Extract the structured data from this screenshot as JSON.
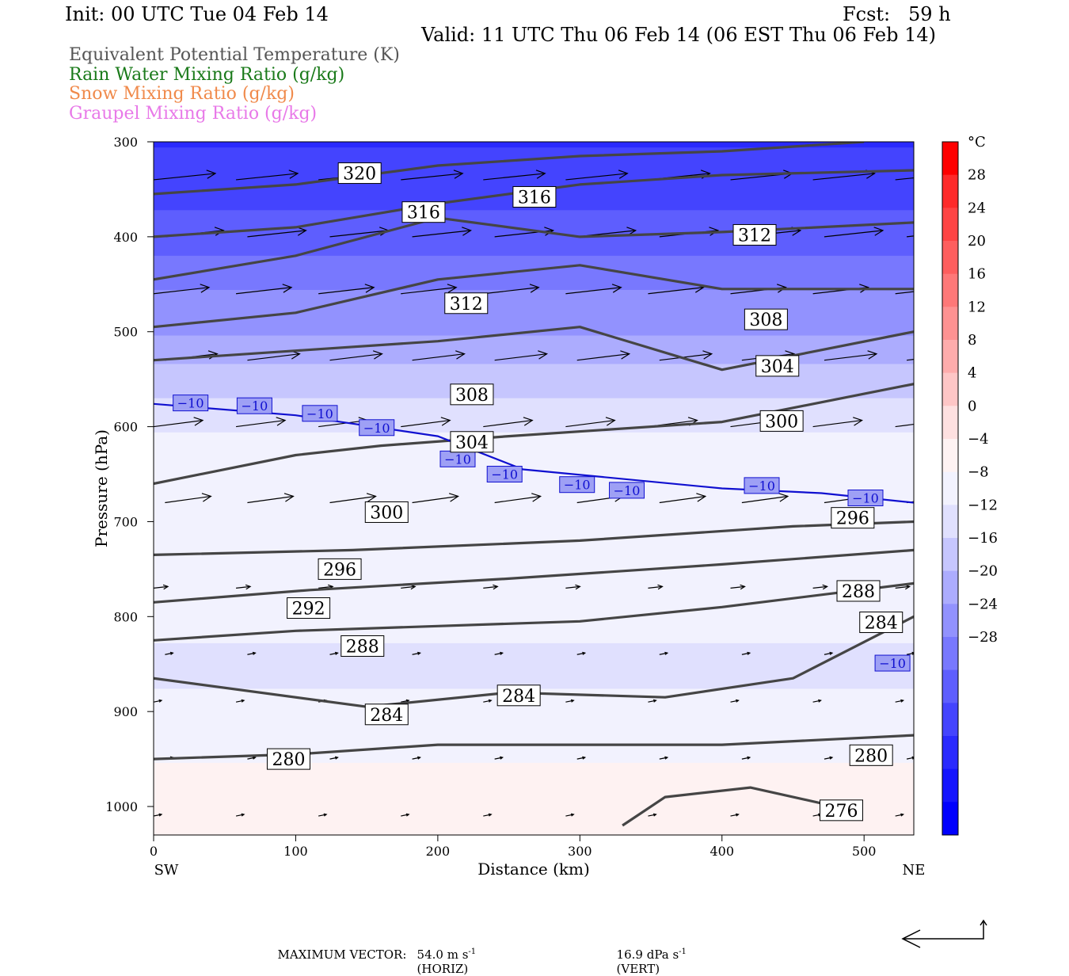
{
  "header": {
    "init": "Init: 00 UTC Tue 04 Feb 14",
    "fcst": "Fcst:   59 h",
    "valid": "Valid: 11 UTC Thu 06 Feb 14 (06 EST Thu 06 Feb 14)"
  },
  "titles": [
    {
      "text": "Equivalent Potential Temperature (K)",
      "color": "#555555"
    },
    {
      "text": "Rain Water Mixing Ratio (g/kg)",
      "color": "#1a7a1a"
    },
    {
      "text": "Snow Mixing Ratio (g/kg)",
      "color": "#f08a4b"
    },
    {
      "text": "Graupel Mixing Ratio (g/kg)",
      "color": "#e879e8"
    }
  ],
  "footer": {
    "label": "MAXIMUM VECTOR:",
    "horiz_value": "54.0 m s",
    "horiz_unit": "-1",
    "horiz_tag": "(HORIZ)",
    "vert_value": "16.9 dPa s",
    "vert_unit": "-1",
    "vert_tag": "(VERT)"
  },
  "chart_data": {
    "type": "heatmap",
    "xlabel": "Distance (km)",
    "ylabel": "Pressure (hPa)",
    "xlim": [
      0,
      535
    ],
    "ylim": [
      1030,
      300
    ],
    "x_ticks": [
      0,
      100,
      200,
      300,
      400,
      500
    ],
    "y_ticks": [
      300,
      400,
      500,
      600,
      700,
      800,
      900,
      1000
    ],
    "x_end_labels": {
      "left": "SW",
      "right": "NE"
    },
    "colorbar": {
      "unit": "°C",
      "labels": [
        28,
        24,
        20,
        16,
        12,
        8,
        4,
        0,
        -4,
        -8,
        -12,
        -16,
        -20,
        -24,
        -28
      ],
      "colors": [
        "#fe0000",
        "#fe2a2a",
        "#fe4444",
        "#fe5e5e",
        "#fe7878",
        "#fe9292",
        "#feacac",
        "#fec6c6",
        "#fee0e0",
        "#fef2f2",
        "#f2f2fe",
        "#e0e0fe",
        "#c6c6fe",
        "#acacfe",
        "#9292fe",
        "#7878fe",
        "#5e5efe",
        "#4444fe",
        "#2a2afe",
        "#1414fe",
        "#0000fe"
      ]
    },
    "temperature_field_bands": [
      {
        "p": 300,
        "t": -40
      },
      {
        "p": 400,
        "t": -34
      },
      {
        "p": 450,
        "t": -28
      },
      {
        "p": 500,
        "t": -24
      },
      {
        "p": 550,
        "t": -18
      },
      {
        "p": 600,
        "t": -12
      },
      {
        "p": 700,
        "t": -8
      },
      {
        "p": 780,
        "t": -10
      },
      {
        "p": 850,
        "t": -13
      },
      {
        "p": 950,
        "t": -8
      },
      {
        "p": 1010,
        "t": -4
      }
    ],
    "theta_e_contours": [
      {
        "value": 320,
        "points": [
          [
            0,
            355
          ],
          [
            100,
            345
          ],
          [
            200,
            325
          ],
          [
            300,
            315
          ],
          [
            400,
            310
          ],
          [
            500,
            300
          ]
        ],
        "label_at": [
          145,
          333
        ]
      },
      {
        "value": 316,
        "points": [
          [
            0,
            400
          ],
          [
            100,
            390
          ],
          [
            200,
            365
          ],
          [
            300,
            345
          ],
          [
            400,
            335
          ],
          [
            535,
            330
          ]
        ],
        "label_at": [
          190,
          374
        ],
        "label2_at": [
          268,
          358
        ]
      },
      {
        "value": 312,
        "points": [
          [
            0,
            445
          ],
          [
            100,
            420
          ],
          [
            200,
            380
          ],
          [
            300,
            400
          ],
          [
            400,
            395
          ],
          [
            535,
            385
          ]
        ],
        "label_at": [
          220,
          470
        ],
        "label2_at": [
          423,
          398
        ]
      },
      {
        "value": 308,
        "points": [
          [
            0,
            495
          ],
          [
            100,
            480
          ],
          [
            200,
            445
          ],
          [
            300,
            430
          ],
          [
            400,
            455
          ],
          [
            535,
            455
          ]
        ],
        "label_at": [
          224,
          566
        ],
        "label2_at": [
          431,
          487
        ]
      },
      {
        "value": 304,
        "points": [
          [
            0,
            530
          ],
          [
            100,
            520
          ],
          [
            200,
            510
          ],
          [
            300,
            495
          ],
          [
            400,
            540
          ],
          [
            535,
            500
          ]
        ],
        "label_at": [
          224,
          616
        ],
        "label2_at": [
          439,
          536
        ]
      },
      {
        "value": 300,
        "points": [
          [
            0,
            660
          ],
          [
            100,
            630
          ],
          [
            160,
            620
          ],
          [
            250,
            610
          ],
          [
            400,
            595
          ],
          [
            535,
            555
          ]
        ],
        "label_at": [
          164,
          690
        ],
        "label2_at": [
          442,
          594
        ]
      },
      {
        "value": 296,
        "points": [
          [
            0,
            735
          ],
          [
            140,
            730
          ],
          [
            300,
            720
          ],
          [
            450,
            705
          ],
          [
            535,
            700
          ]
        ],
        "label_at": [
          131,
          750
        ],
        "label2_at": [
          492,
          696
        ]
      },
      {
        "value": 292,
        "points": [
          [
            0,
            785
          ],
          [
            110,
            772
          ],
          [
            250,
            760
          ],
          [
            400,
            745
          ],
          [
            535,
            730
          ]
        ],
        "label_at": [
          109,
          791
        ]
      },
      {
        "value": 288,
        "points": [
          [
            0,
            825
          ],
          [
            100,
            815
          ],
          [
            200,
            810
          ],
          [
            300,
            805
          ],
          [
            400,
            790
          ],
          [
            535,
            765
          ]
        ],
        "label_at": [
          147,
          831
        ],
        "label2_at": [
          496,
          773
        ]
      },
      {
        "value": 284,
        "points": [
          [
            0,
            865
          ],
          [
            150,
            895
          ],
          [
            250,
            880
          ],
          [
            360,
            885
          ],
          [
            450,
            865
          ],
          [
            535,
            800
          ]
        ],
        "label_at": [
          164,
          903
        ],
        "label2_at": [
          257,
          883
        ],
        "label3_at": [
          512,
          806
        ]
      },
      {
        "value": 280,
        "points": [
          [
            0,
            950
          ],
          [
            100,
            945
          ],
          [
            200,
            935
          ],
          [
            400,
            935
          ],
          [
            535,
            925
          ]
        ],
        "label_at": [
          95,
          950
        ],
        "label2_at": [
          505,
          946
        ]
      },
      {
        "value": 276,
        "points": [
          [
            330,
            1020
          ],
          [
            360,
            990
          ],
          [
            420,
            980
          ],
          [
            480,
            1000
          ]
        ],
        "label_at": [
          484,
          1004
        ]
      }
    ],
    "isotherm_minus10": {
      "value": -10,
      "color": "#1010d0",
      "points": [
        [
          0,
          576
        ],
        [
          100,
          588
        ],
        [
          200,
          610
        ],
        [
          260,
          645
        ],
        [
          400,
          665
        ],
        [
          470,
          670
        ],
        [
          535,
          680
        ]
      ],
      "labels_at": [
        [
          26,
          575
        ],
        [
          71,
          578
        ],
        [
          117,
          586
        ],
        [
          157,
          601
        ],
        [
          214,
          634
        ],
        [
          247,
          650
        ],
        [
          298,
          661
        ],
        [
          333,
          667
        ],
        [
          428,
          662
        ],
        [
          501,
          675
        ],
        [
          520,
          849
        ]
      ]
    },
    "wind_vector_rows_hpa": [
      340,
      400,
      460,
      530,
      600,
      680,
      770,
      840,
      890,
      950,
      1010
    ],
    "max_vector": {
      "horiz": "54.0 m s-1",
      "vert": "16.9 dPa s-1"
    }
  }
}
